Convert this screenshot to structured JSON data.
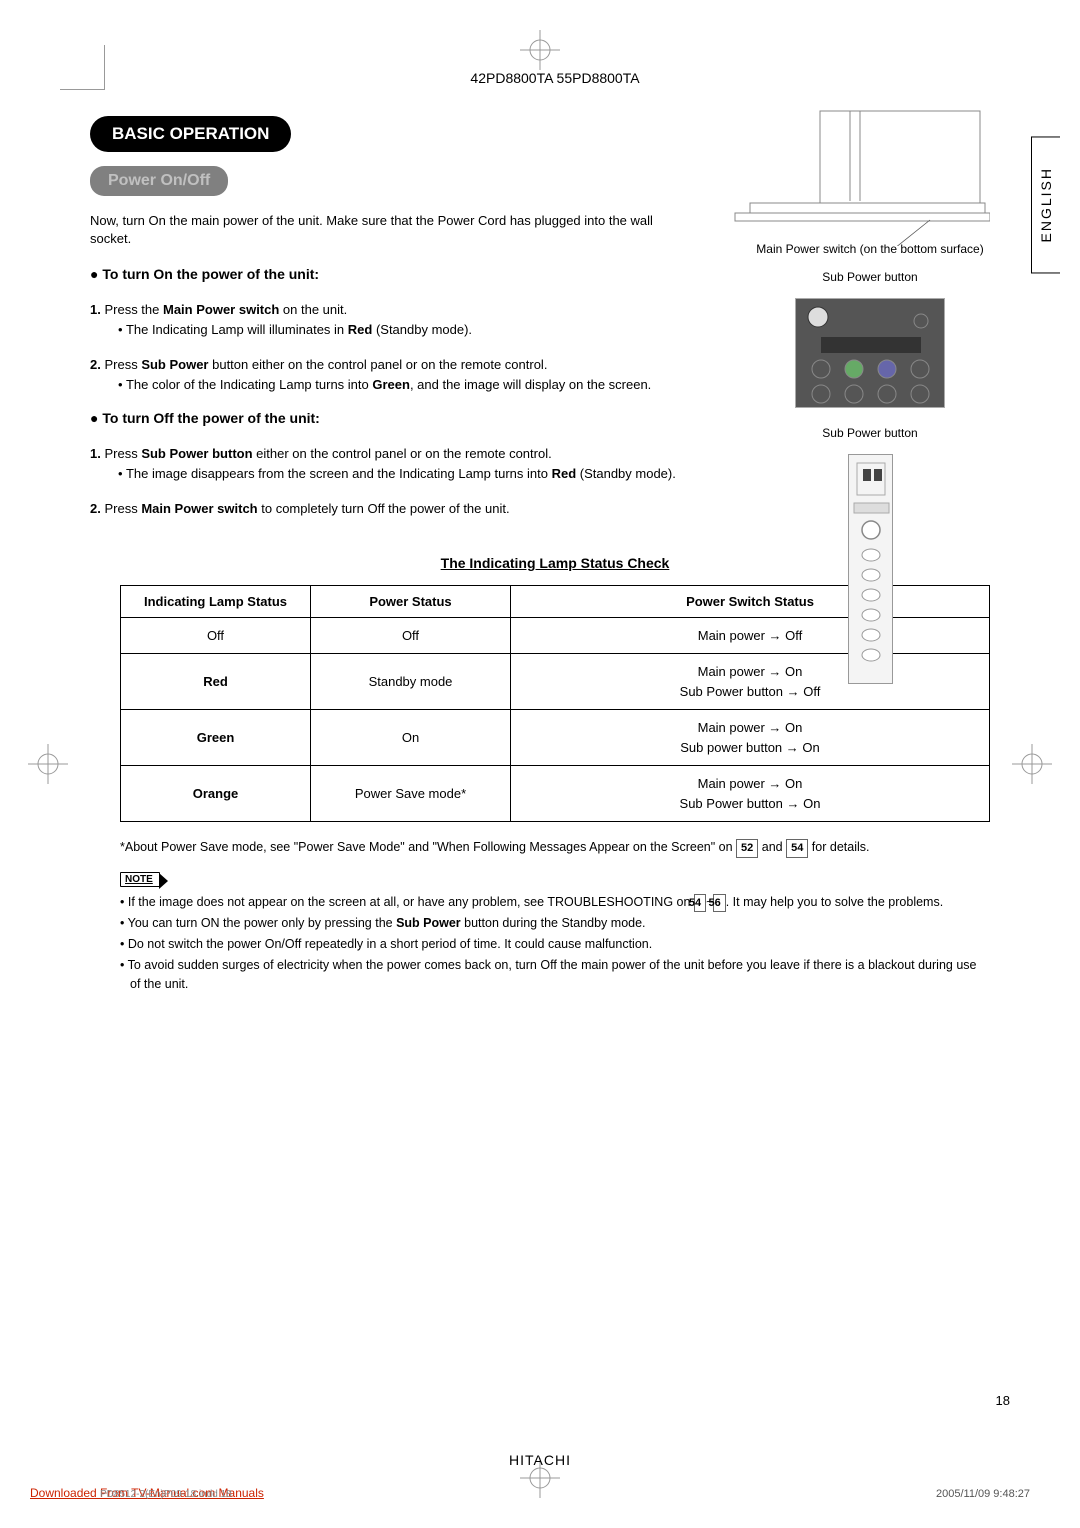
{
  "header": {
    "model": "42PD8800TA  55PD8800TA"
  },
  "tab": {
    "language": "ENGLISH"
  },
  "section": {
    "title": "BASIC OPERATION",
    "subtitle": "Power On/Off",
    "intro": "Now, turn On the main power of the unit.  Make sure that the Power Cord has plugged into the wall socket.",
    "procOnHead": "To turn On the power of the unit:",
    "stepsOn": [
      {
        "num": "1.",
        "textPre": "Press the ",
        "bold": "Main Power switch",
        "textPost": " on the unit.",
        "sub": {
          "pre": "The Indicating Lamp will illuminates in ",
          "bold": "Red",
          "post": " (Standby mode)."
        }
      },
      {
        "num": "2.",
        "textPre": "Press ",
        "bold": "Sub Power",
        "textPost": " button either on the control panel or on the remote control.",
        "sub": {
          "pre": "The color of the Indicating Lamp turns into ",
          "bold": "Green",
          "post": ", and the image will display on the screen."
        }
      }
    ],
    "procOffHead": "To turn Off the power of the unit:",
    "stepsOff": [
      {
        "num": "1.",
        "textPre": "Press ",
        "bold": "Sub Power button",
        "textPost": " either on the control panel or on the remote control.",
        "sub": {
          "pre": "The image disappears from the screen and the Indicating Lamp turns into ",
          "bold": "Red",
          "post": " (Standby mode)."
        }
      },
      {
        "num": "2.",
        "textPre": "Press ",
        "bold": "Main Power switch",
        "textPost": " to completely turn Off the power of the unit.",
        "sub": null
      }
    ]
  },
  "figures": {
    "tvCaption": "Main Power switch (on the bottom surface)",
    "remoteCaption": "Sub Power button",
    "panelCaption": "Sub Power button"
  },
  "table": {
    "title": "The Indicating Lamp Status Check",
    "headers": [
      "Indicating Lamp Status",
      "Power Status",
      "Power Switch Status"
    ],
    "rows": [
      {
        "c0": "Off",
        "c0bold": false,
        "c1": "Off",
        "c2a": "Main power → Off",
        "c2b": ""
      },
      {
        "c0": "Red",
        "c0bold": true,
        "c1": "Standby mode",
        "c2a": "Main power → On",
        "c2b": "Sub Power button → Off"
      },
      {
        "c0": "Green",
        "c0bold": true,
        "c1": "On",
        "c2a": "Main power → On",
        "c2b": "Sub power button → On"
      },
      {
        "c0": "Orange",
        "c0bold": true,
        "c1": "Power Save mode*",
        "c2a": "Main power → On",
        "c2b": "Sub Power button → On"
      }
    ]
  },
  "footnote": {
    "pre": "*About Power Save mode, see \"Power Save Mode\" and \"When Following Messages Appear on the Screen\" on ",
    "ref1": "52",
    "mid": " and ",
    "ref2": "54",
    "post": " for details."
  },
  "noteLabel": "NOTE",
  "notes": [
    {
      "pre": "If the image does not appear on the screen at all, or have any problem, see TROUBLESHOOTING on ",
      "ref1": "54",
      "mid": "~",
      "ref2": "56",
      "post": ".  It may help you to solve the problems."
    },
    {
      "pre": "You can turn ON the power only by pressing the ",
      "bold": "Sub Power",
      "post": " button during the Standby mode."
    },
    {
      "pre": "Do not switch the power On/Off repeatedly in a short period of time. It could cause malfunction."
    },
    {
      "pre": "To avoid sudden surges of electricity when the power comes back on, turn Off the main power of the unit before you leave if there is a blackout during use of the unit."
    }
  ],
  "pageNumber": "18",
  "brand": "HITACHI",
  "download": "Downloaded From TV-Manual.com Manuals",
  "spine": {
    "left": "PD8512-2(En)P09-18.indd   18",
    "right": "2005/11/09   9:48:27"
  }
}
